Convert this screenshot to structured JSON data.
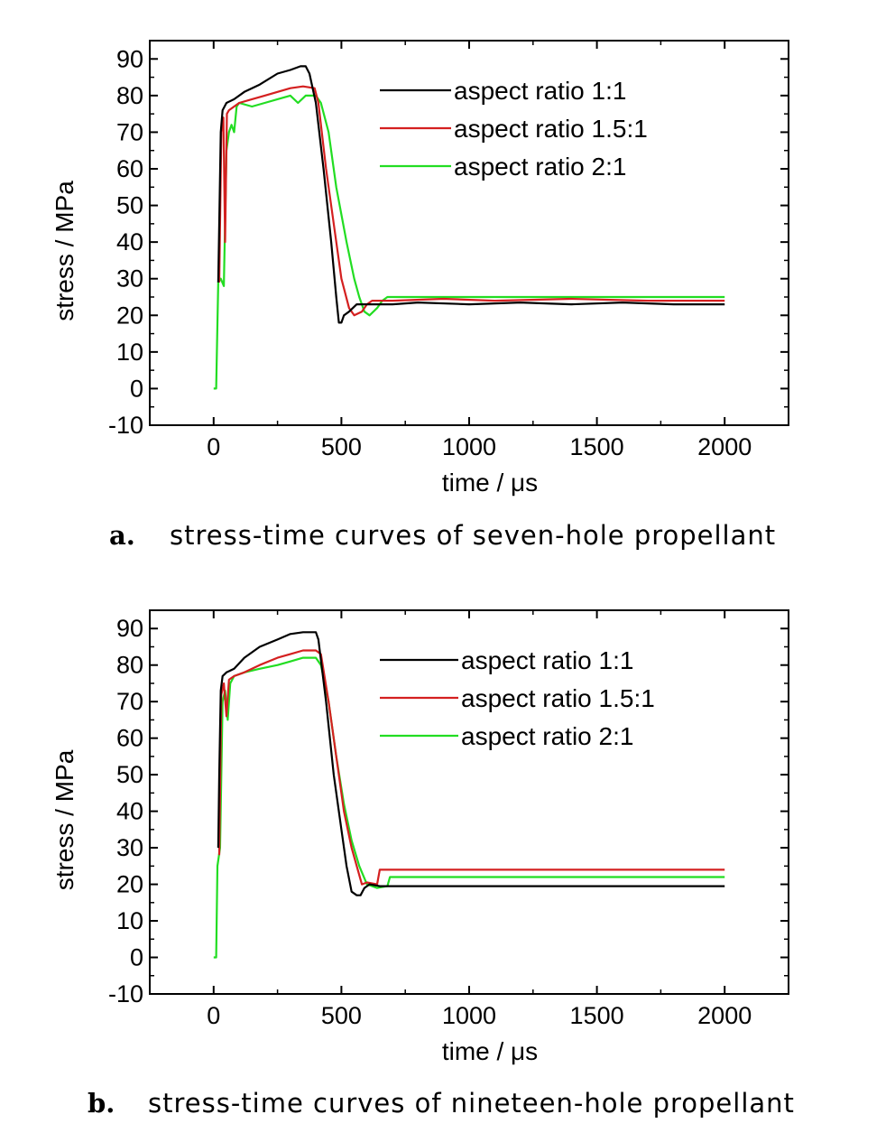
{
  "colors": {
    "black": "#000000",
    "red": "#d42020",
    "green": "#22dd22"
  },
  "chart_data": [
    {
      "type": "line",
      "caption_letter": "a.",
      "caption": "stress-time curves of seven-hole propellant",
      "xlabel": "time / μs",
      "ylabel": "stress / MPa",
      "xlim": [
        -250,
        2250
      ],
      "ylim": [
        -10,
        95
      ],
      "xticks": [
        0,
        500,
        1000,
        1500,
        2000
      ],
      "yticks": [
        90,
        80,
        70,
        60,
        50,
        40,
        30,
        20,
        10,
        0,
        -10
      ],
      "legend_position": "top-right",
      "series": [
        {
          "name": "aspect ratio 1:1",
          "color": "#000000",
          "points": [
            [
              18,
              29
            ],
            [
              22,
              45
            ],
            [
              28,
              70
            ],
            [
              35,
              76
            ],
            [
              50,
              78
            ],
            [
              80,
              79
            ],
            [
              120,
              81
            ],
            [
              180,
              83
            ],
            [
              250,
              86
            ],
            [
              300,
              87
            ],
            [
              340,
              88
            ],
            [
              360,
              88
            ],
            [
              375,
              86
            ],
            [
              400,
              78
            ],
            [
              430,
              60
            ],
            [
              460,
              40
            ],
            [
              480,
              25
            ],
            [
              490,
              18
            ],
            [
              500,
              18
            ],
            [
              510,
              20
            ],
            [
              530,
              21
            ],
            [
              560,
              23
            ],
            [
              600,
              23
            ],
            [
              700,
              23
            ],
            [
              800,
              23.5
            ],
            [
              1000,
              23
            ],
            [
              1200,
              23.5
            ],
            [
              1400,
              23
            ],
            [
              1600,
              23.5
            ],
            [
              1800,
              23
            ],
            [
              2000,
              23
            ]
          ]
        },
        {
          "name": "aspect ratio 1.5:1",
          "color": "#d42020",
          "points": [
            [
              22,
              29
            ],
            [
              30,
              70
            ],
            [
              38,
              74
            ],
            [
              45,
              40
            ],
            [
              52,
              75
            ],
            [
              60,
              76
            ],
            [
              80,
              77
            ],
            [
              100,
              78
            ],
            [
              150,
              79
            ],
            [
              200,
              80
            ],
            [
              250,
              81
            ],
            [
              300,
              82
            ],
            [
              350,
              82.5
            ],
            [
              395,
              82
            ],
            [
              410,
              78
            ],
            [
              440,
              60
            ],
            [
              470,
              45
            ],
            [
              500,
              30
            ],
            [
              530,
              22
            ],
            [
              550,
              20
            ],
            [
              580,
              21
            ],
            [
              600,
              23
            ],
            [
              620,
              24
            ],
            [
              700,
              24
            ],
            [
              900,
              24.5
            ],
            [
              1100,
              24
            ],
            [
              1400,
              24.5
            ],
            [
              1700,
              24
            ],
            [
              2000,
              24
            ]
          ]
        },
        {
          "name": "aspect ratio 2:1",
          "color": "#22dd22",
          "points": [
            [
              0,
              0
            ],
            [
              10,
              0
            ],
            [
              18,
              29
            ],
            [
              28,
              30
            ],
            [
              40,
              28
            ],
            [
              50,
              65
            ],
            [
              60,
              70
            ],
            [
              70,
              72
            ],
            [
              80,
              70
            ],
            [
              90,
              77
            ],
            [
              100,
              78
            ],
            [
              150,
              77
            ],
            [
              200,
              78
            ],
            [
              250,
              79
            ],
            [
              300,
              80
            ],
            [
              330,
              78
            ],
            [
              360,
              80
            ],
            [
              400,
              80
            ],
            [
              420,
              78
            ],
            [
              450,
              70
            ],
            [
              480,
              55
            ],
            [
              520,
              40
            ],
            [
              550,
              30
            ],
            [
              570,
              25
            ],
            [
              590,
              21
            ],
            [
              610,
              20
            ],
            [
              640,
              22
            ],
            [
              660,
              24
            ],
            [
              680,
              25
            ],
            [
              800,
              25
            ],
            [
              1000,
              25
            ],
            [
              1200,
              25
            ],
            [
              1500,
              25
            ],
            [
              1800,
              25
            ],
            [
              2000,
              25
            ]
          ]
        }
      ]
    },
    {
      "type": "line",
      "caption_letter": "b.",
      "caption": "stress-time curves of nineteen-hole propellant",
      "xlabel": "time / μs",
      "ylabel": "stress / MPa",
      "xlim": [
        -250,
        2250
      ],
      "ylim": [
        -10,
        95
      ],
      "xticks": [
        0,
        500,
        1000,
        1500,
        2000
      ],
      "yticks": [
        90,
        80,
        70,
        60,
        50,
        40,
        30,
        20,
        10,
        0,
        -10
      ],
      "legend_position": "top-right",
      "series": [
        {
          "name": "aspect ratio 1:1",
          "color": "#000000",
          "points": [
            [
              18,
              30
            ],
            [
              22,
              50
            ],
            [
              28,
              73
            ],
            [
              35,
              77
            ],
            [
              50,
              78
            ],
            [
              80,
              79
            ],
            [
              120,
              82
            ],
            [
              180,
              85
            ],
            [
              250,
              87
            ],
            [
              300,
              88.5
            ],
            [
              350,
              89
            ],
            [
              380,
              89
            ],
            [
              400,
              89
            ],
            [
              410,
              87
            ],
            [
              440,
              70
            ],
            [
              470,
              50
            ],
            [
              500,
              35
            ],
            [
              520,
              25
            ],
            [
              540,
              18
            ],
            [
              560,
              17
            ],
            [
              575,
              17
            ],
            [
              590,
              19
            ],
            [
              610,
              20
            ],
            [
              650,
              19.5
            ],
            [
              800,
              19.5
            ],
            [
              1000,
              19.5
            ],
            [
              1200,
              19.5
            ],
            [
              1400,
              19.5
            ],
            [
              1600,
              19.5
            ],
            [
              1800,
              19.5
            ],
            [
              2000,
              19.5
            ]
          ]
        },
        {
          "name": "aspect ratio 1.5:1",
          "color": "#d42020",
          "points": [
            [
              22,
              28
            ],
            [
              30,
              72
            ],
            [
              40,
              75
            ],
            [
              50,
              66
            ],
            [
              60,
              76
            ],
            [
              80,
              77
            ],
            [
              120,
              78
            ],
            [
              180,
              80
            ],
            [
              250,
              82
            ],
            [
              300,
              83
            ],
            [
              350,
              84
            ],
            [
              400,
              84
            ],
            [
              420,
              83
            ],
            [
              450,
              70
            ],
            [
              480,
              55
            ],
            [
              510,
              40
            ],
            [
              540,
              30
            ],
            [
              560,
              25
            ],
            [
              580,
              20
            ],
            [
              600,
              20.5
            ],
            [
              640,
              20
            ],
            [
              650,
              24
            ],
            [
              700,
              24
            ],
            [
              900,
              24
            ],
            [
              1200,
              24
            ],
            [
              1500,
              24
            ],
            [
              1800,
              24
            ],
            [
              2000,
              24
            ]
          ]
        },
        {
          "name": "aspect ratio 2:1",
          "color": "#22dd22",
          "points": [
            [
              0,
              0
            ],
            [
              10,
              0
            ],
            [
              15,
              25
            ],
            [
              25,
              30
            ],
            [
              35,
              70
            ],
            [
              45,
              73
            ],
            [
              55,
              65
            ],
            [
              65,
              75
            ],
            [
              80,
              77
            ],
            [
              120,
              78
            ],
            [
              180,
              79
            ],
            [
              250,
              80
            ],
            [
              300,
              81
            ],
            [
              350,
              82
            ],
            [
              400,
              82
            ],
            [
              420,
              80
            ],
            [
              450,
              70
            ],
            [
              480,
              55
            ],
            [
              510,
              42
            ],
            [
              540,
              32
            ],
            [
              570,
              25
            ],
            [
              600,
              20
            ],
            [
              640,
              19
            ],
            [
              680,
              19.5
            ],
            [
              690,
              22
            ],
            [
              800,
              22
            ],
            [
              1000,
              22
            ],
            [
              1300,
              22
            ],
            [
              1600,
              22
            ],
            [
              2000,
              22
            ]
          ]
        }
      ]
    }
  ]
}
